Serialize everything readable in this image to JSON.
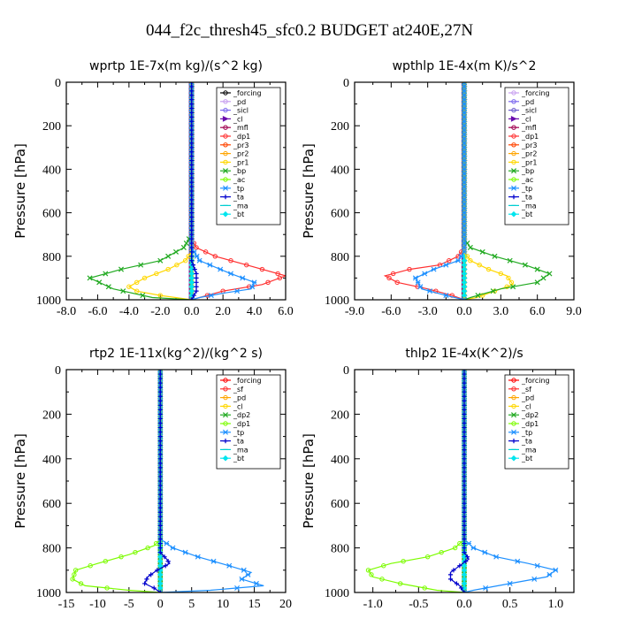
{
  "figure_title": "044_f2c_thresh45_sfc0.2  BUDGET at240E,27N",
  "chart_data": [
    {
      "type": "line",
      "title": "wprtp  1E-7x(m kg)/(s^2 kg)",
      "ylabel": "Pressure [hPa]",
      "xlim": [
        -8,
        6
      ],
      "ylim": [
        1000,
        0
      ],
      "xticks": [
        "-8.0",
        "-6.0",
        "-4.0",
        "-2.0",
        "0.0",
        "2.0",
        "4.0",
        "6.0"
      ],
      "yticks": [
        "0",
        "200",
        "400",
        "600",
        "800",
        "1000"
      ],
      "legend_position": "top-right",
      "grid": false,
      "series": [
        {
          "name": "_forcing",
          "color": "#000000",
          "marker": "o",
          "x": [
            0,
            0,
            0,
            0,
            0,
            0
          ],
          "y": [
            0,
            200,
            400,
            600,
            800,
            1000
          ]
        },
        {
          "name": "_pd",
          "color": "#c79fef",
          "marker": "o",
          "x": [
            0,
            0,
            0,
            0,
            0,
            0
          ],
          "y": [
            0,
            200,
            400,
            600,
            800,
            1000
          ]
        },
        {
          "name": "_sicl",
          "color": "#7b68ee",
          "marker": "o",
          "x": [
            0,
            0,
            0,
            0,
            0,
            0
          ],
          "y": [
            0,
            200,
            400,
            600,
            800,
            1000
          ]
        },
        {
          "name": "_cl",
          "color": "#6a0dad",
          "marker": ">",
          "x": [
            0,
            0,
            0,
            0,
            0,
            0
          ],
          "y": [
            0,
            200,
            400,
            600,
            800,
            1000
          ]
        },
        {
          "name": "_mfl",
          "color": "#a0004f",
          "marker": "o",
          "x": [
            0,
            0,
            0,
            0,
            0,
            0
          ],
          "y": [
            0,
            200,
            400,
            600,
            800,
            1000
          ]
        },
        {
          "name": "_dp1",
          "color": "#ff3030",
          "marker": "o",
          "x": [
            0,
            0,
            0.3,
            1.5,
            3.5,
            6.0,
            4.5,
            2.0,
            0.5,
            0
          ],
          "y": [
            0,
            720,
            760,
            800,
            840,
            890,
            930,
            960,
            990,
            1000
          ]
        },
        {
          "name": "_pr3",
          "color": "#ff4500",
          "marker": "o",
          "x": [
            0,
            0,
            0
          ],
          "y": [
            0,
            800,
            1000
          ]
        },
        {
          "name": "_pr2",
          "color": "#ffa500",
          "marker": "o",
          "x": [
            0,
            0,
            0
          ],
          "y": [
            0,
            800,
            1000
          ]
        },
        {
          "name": "_pr1",
          "color": "#ffd700",
          "marker": "o",
          "x": [
            0,
            0,
            -0.4,
            -1.5,
            -3.0,
            -4.0,
            -3.5,
            -2.0,
            0
          ],
          "y": [
            0,
            780,
            820,
            860,
            900,
            940,
            960,
            980,
            1000
          ]
        },
        {
          "name": "_bp",
          "color": "#22aa22",
          "marker": "x",
          "x": [
            0,
            0,
            -0.5,
            -2.0,
            -4.5,
            -6.5,
            -5.0,
            -2.5,
            0
          ],
          "y": [
            0,
            700,
            760,
            820,
            860,
            900,
            950,
            990,
            1000
          ]
        },
        {
          "name": "_ac",
          "color": "#7cfc00",
          "marker": "o",
          "x": [
            0,
            0,
            0
          ],
          "y": [
            0,
            800,
            1000
          ]
        },
        {
          "name": "_tp",
          "color": "#1e90ff",
          "marker": "*",
          "x": [
            0,
            0,
            0.5,
            2.5,
            4.0,
            3.8,
            2.0,
            0.5,
            0
          ],
          "y": [
            0,
            760,
            820,
            880,
            920,
            950,
            970,
            990,
            1000
          ]
        },
        {
          "name": "_ta",
          "color": "#0000cd",
          "marker": "+",
          "x": [
            0,
            0,
            0.3,
            0.3,
            0
          ],
          "y": [
            0,
            820,
            880,
            960,
            1000
          ]
        },
        {
          "name": "_ma",
          "color": "#00ced1",
          "marker": "-",
          "x": [
            0,
            0,
            0
          ],
          "y": [
            0,
            800,
            1000
          ]
        },
        {
          "name": "_bt",
          "color": "#00e5ee",
          "marker": "D",
          "x": [
            0,
            0,
            0
          ],
          "y": [
            0,
            800,
            1000
          ]
        }
      ]
    },
    {
      "type": "line",
      "title": "wpthlp  1E-4x(m K)/s^2",
      "ylabel": "Pressure [hPa]",
      "xlim": [
        -9,
        9
      ],
      "ylim": [
        1000,
        0
      ],
      "xticks": [
        "-9.0",
        "-6.0",
        "-3.0",
        "0.0",
        "3.0",
        "6.0",
        "9.0"
      ],
      "yticks": [
        "0",
        "200",
        "400",
        "600",
        "800",
        "1000"
      ],
      "legend_position": "top-right",
      "grid": false,
      "series": [
        {
          "name": "_forcing",
          "color": "#c79fef",
          "marker": "o",
          "x": [
            0,
            0,
            0
          ],
          "y": [
            0,
            800,
            1000
          ]
        },
        {
          "name": "_pd",
          "color": "#7b68ee",
          "marker": "o",
          "x": [
            0,
            0,
            0
          ],
          "y": [
            0,
            800,
            1000
          ]
        },
        {
          "name": "_sicl",
          "color": "#6a5acd",
          "marker": "o",
          "x": [
            0,
            0,
            0
          ],
          "y": [
            0,
            800,
            1000
          ]
        },
        {
          "name": "_cl",
          "color": "#6a0dad",
          "marker": ">",
          "x": [
            0,
            0,
            0
          ],
          "y": [
            0,
            800,
            1000
          ]
        },
        {
          "name": "_mfl",
          "color": "#a0004f",
          "marker": "o",
          "x": [
            0,
            0,
            0
          ],
          "y": [
            0,
            800,
            1000
          ]
        },
        {
          "name": "_dp1",
          "color": "#ff3030",
          "marker": "o",
          "x": [
            0,
            0,
            -0.5,
            -2.0,
            -4.5,
            -6.5,
            -5.5,
            -3.0,
            -1.0,
            0
          ],
          "y": [
            0,
            760,
            800,
            840,
            860,
            890,
            920,
            950,
            980,
            1000
          ]
        },
        {
          "name": "_pr3",
          "color": "#ff4500",
          "marker": "o",
          "x": [
            0,
            0,
            0
          ],
          "y": [
            0,
            800,
            1000
          ]
        },
        {
          "name": "_pr2",
          "color": "#ffa500",
          "marker": "o",
          "x": [
            0,
            0,
            0
          ],
          "y": [
            0,
            800,
            1000
          ]
        },
        {
          "name": "_pr1",
          "color": "#ffd700",
          "marker": "o",
          "x": [
            0,
            0,
            0.5,
            2.0,
            3.5,
            4.0,
            2.5,
            1.0,
            0
          ],
          "y": [
            0,
            780,
            820,
            860,
            890,
            930,
            960,
            990,
            1000
          ]
        },
        {
          "name": "_bp",
          "color": "#22aa22",
          "marker": "x",
          "x": [
            0,
            0,
            0.5,
            2.5,
            5.0,
            7.0,
            6.0,
            3.0,
            0.5,
            0
          ],
          "y": [
            0,
            720,
            760,
            800,
            840,
            880,
            920,
            950,
            990,
            1000
          ]
        },
        {
          "name": "_ac",
          "color": "#7cfc00",
          "marker": "o",
          "x": [
            0,
            0,
            0
          ],
          "y": [
            0,
            800,
            1000
          ]
        },
        {
          "name": "_tp",
          "color": "#1e90ff",
          "marker": "*",
          "x": [
            0,
            0,
            -0.5,
            -2.5,
            -4.0,
            -3.5,
            -1.5,
            0
          ],
          "y": [
            0,
            780,
            820,
            860,
            900,
            950,
            980,
            1000
          ]
        },
        {
          "name": "_ta",
          "color": "#0000cd",
          "marker": "+",
          "x": [
            0,
            0,
            0
          ],
          "y": [
            0,
            800,
            1000
          ]
        },
        {
          "name": "_ma",
          "color": "#00ced1",
          "marker": "-",
          "x": [
            0,
            0,
            0
          ],
          "y": [
            0,
            800,
            1000
          ]
        },
        {
          "name": "_bt",
          "color": "#00e5ee",
          "marker": "D",
          "x": [
            0,
            0,
            0
          ],
          "y": [
            0,
            800,
            1000
          ]
        }
      ]
    },
    {
      "type": "line",
      "title": "rtp2  1E-11x(kg^2)/(kg^2 s)",
      "ylabel": "Pressure [hPa]",
      "xlim": [
        -15,
        20
      ],
      "ylim": [
        1000,
        0
      ],
      "xticks": [
        "-15",
        "-10",
        "-5",
        "0",
        "5",
        "10",
        "15",
        "20"
      ],
      "yticks": [
        "0",
        "200",
        "400",
        "600",
        "800",
        "1000"
      ],
      "legend_position": "top-right",
      "grid": false,
      "series": [
        {
          "name": "_forcing",
          "color": "#ff0000",
          "marker": "o",
          "x": [
            0,
            0,
            0,
            0,
            0,
            0
          ],
          "y": [
            0,
            200,
            400,
            600,
            800,
            1000
          ]
        },
        {
          "name": "_sf",
          "color": "#ff3030",
          "marker": "o",
          "x": [
            0,
            0,
            0,
            0,
            0,
            0
          ],
          "y": [
            0,
            200,
            400,
            600,
            800,
            1000
          ]
        },
        {
          "name": "_pd",
          "color": "#ffa500",
          "marker": "o",
          "x": [
            0,
            0,
            0
          ],
          "y": [
            0,
            800,
            1000
          ]
        },
        {
          "name": "_cl",
          "color": "#ffd700",
          "marker": "o",
          "x": [
            0,
            0,
            0
          ],
          "y": [
            0,
            800,
            1000
          ]
        },
        {
          "name": "_dp2",
          "color": "#22aa22",
          "marker": "x",
          "x": [
            0,
            0,
            0
          ],
          "y": [
            0,
            800,
            1000
          ]
        },
        {
          "name": "_dp1",
          "color": "#7cfc00",
          "marker": "o",
          "x": [
            0,
            0,
            -1.0,
            -5.0,
            -10.0,
            -13.5,
            -14.0,
            -12.0,
            -5.0,
            0
          ],
          "y": [
            0,
            760,
            790,
            830,
            870,
            900,
            940,
            970,
            990,
            1000
          ]
        },
        {
          "name": "_tp",
          "color": "#1e90ff",
          "marker": "*",
          "x": [
            0,
            0,
            2.0,
            6.0,
            11.0,
            14.5,
            13.0,
            16.5,
            8.0,
            0
          ],
          "y": [
            0,
            760,
            800,
            840,
            880,
            910,
            940,
            970,
            990,
            1000
          ]
        },
        {
          "name": "_ta",
          "color": "#0000cd",
          "marker": "+",
          "x": [
            0,
            0,
            1.0,
            1.5,
            -0.5,
            -2.0,
            -2.5,
            -1.0,
            0
          ],
          "y": [
            0,
            820,
            850,
            870,
            900,
            930,
            960,
            980,
            1000
          ]
        },
        {
          "name": "_ma",
          "color": "#00ced1",
          "marker": "-",
          "x": [
            0,
            0,
            0
          ],
          "y": [
            0,
            800,
            1000
          ]
        },
        {
          "name": "_bt",
          "color": "#00e5ee",
          "marker": "D",
          "x": [
            0,
            0,
            0
          ],
          "y": [
            0,
            800,
            1000
          ]
        }
      ]
    },
    {
      "type": "line",
      "title": "thlp2  1E-4x(K^2)/s",
      "ylabel": "Pressure [hPa]",
      "xlim": [
        -1.2,
        1.2
      ],
      "ylim": [
        1000,
        0
      ],
      "xticks": [
        "-1.0",
        "-0.5",
        "0.0",
        "0.5",
        "1.0"
      ],
      "yticks": [
        "0",
        "200",
        "400",
        "600",
        "800",
        "1000"
      ],
      "legend_position": "top-right",
      "grid": false,
      "series": [
        {
          "name": "_forcing",
          "color": "#ff0000",
          "marker": "o",
          "x": [
            0,
            0,
            0,
            0,
            0,
            0
          ],
          "y": [
            0,
            200,
            400,
            600,
            800,
            1000
          ]
        },
        {
          "name": "_sf",
          "color": "#ff3030",
          "marker": "o",
          "x": [
            0,
            0,
            0,
            0,
            0,
            0
          ],
          "y": [
            0,
            200,
            400,
            600,
            800,
            1000
          ]
        },
        {
          "name": "_pd",
          "color": "#ffa500",
          "marker": "o",
          "x": [
            0,
            0,
            0
          ],
          "y": [
            0,
            800,
            1000
          ]
        },
        {
          "name": "_cl",
          "color": "#ffd700",
          "marker": "o",
          "x": [
            0,
            0,
            0
          ],
          "y": [
            0,
            800,
            1000
          ]
        },
        {
          "name": "_dp2",
          "color": "#22aa22",
          "marker": "x",
          "x": [
            0,
            0,
            0
          ],
          "y": [
            0,
            800,
            1000
          ]
        },
        {
          "name": "_dp1",
          "color": "#7cfc00",
          "marker": "o",
          "x": [
            0,
            0,
            -0.1,
            -0.4,
            -0.8,
            -1.05,
            -1.0,
            -0.7,
            -0.3,
            0
          ],
          "y": [
            0,
            760,
            800,
            840,
            870,
            900,
            930,
            960,
            990,
            1000
          ]
        },
        {
          "name": "_tp",
          "color": "#1e90ff",
          "marker": "*",
          "x": [
            0,
            0,
            0.1,
            0.35,
            0.7,
            1.0,
            0.9,
            0.5,
            0.1,
            0
          ],
          "y": [
            0,
            760,
            800,
            840,
            870,
            900,
            930,
            960,
            990,
            1000
          ]
        },
        {
          "name": "_ta",
          "color": "#0000cd",
          "marker": "+",
          "x": [
            0,
            0,
            0.05,
            -0.05,
            -0.15,
            -0.15,
            -0.05,
            0
          ],
          "y": [
            0,
            820,
            850,
            880,
            910,
            940,
            970,
            1000
          ]
        },
        {
          "name": "_ma",
          "color": "#00ced1",
          "marker": "-",
          "x": [
            0,
            0,
            0
          ],
          "y": [
            0,
            800,
            1000
          ]
        },
        {
          "name": "_bt",
          "color": "#00e5ee",
          "marker": "D",
          "x": [
            0,
            0,
            0
          ],
          "y": [
            0,
            800,
            1000
          ]
        }
      ]
    }
  ]
}
